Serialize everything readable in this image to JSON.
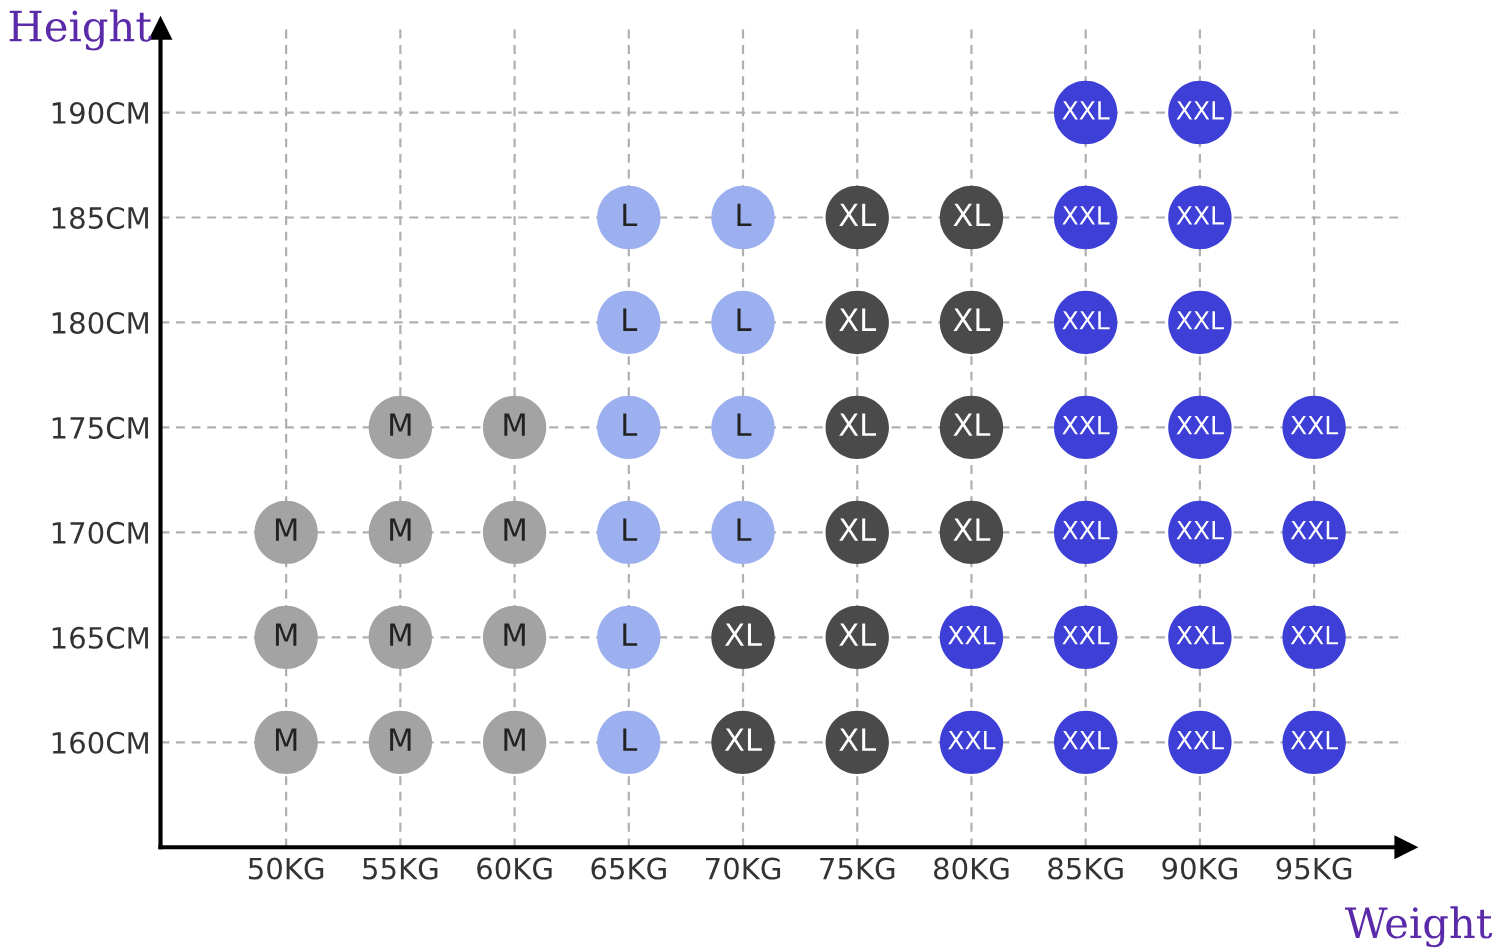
{
  "chart_data": {
    "type": "scatter",
    "xlabel": "Weight",
    "ylabel": "Height",
    "xlim": [
      44.5,
      99
    ],
    "ylim": [
      155,
      194
    ],
    "xticks": [
      {
        "value": 50,
        "label": "50KG"
      },
      {
        "value": 55,
        "label": "55KG"
      },
      {
        "value": 60,
        "label": "60KG"
      },
      {
        "value": 65,
        "label": "65KG"
      },
      {
        "value": 70,
        "label": "70KG"
      },
      {
        "value": 75,
        "label": "75KG"
      },
      {
        "value": 80,
        "label": "80KG"
      },
      {
        "value": 85,
        "label": "85KG"
      },
      {
        "value": 90,
        "label": "90KG"
      },
      {
        "value": 95,
        "label": "95KG"
      }
    ],
    "yticks": [
      {
        "value": 160,
        "label": "160CM"
      },
      {
        "value": 165,
        "label": "165CM"
      },
      {
        "value": 170,
        "label": "170CM"
      },
      {
        "value": 175,
        "label": "175CM"
      },
      {
        "value": 180,
        "label": "180CM"
      },
      {
        "value": 185,
        "label": "185CM"
      },
      {
        "value": 190,
        "label": "190CM"
      }
    ],
    "grid": true,
    "marker": "circle",
    "series": [
      {
        "color": "#a3a3a3",
        "x": [
          50,
          50,
          50,
          55,
          55,
          55,
          55,
          60,
          60,
          60,
          60
        ],
        "values": [
          170,
          165,
          160,
          175,
          170,
          165,
          160,
          175,
          170,
          165,
          160
        ],
        "value_labels": [
          "M",
          "M",
          "M",
          "M",
          "M",
          "M",
          "M",
          "M",
          "M",
          "M",
          "M"
        ]
      },
      {
        "color": "#9cb0f0",
        "x": [
          65,
          65,
          65,
          65,
          65,
          65,
          70,
          70,
          70,
          70
        ],
        "values": [
          185,
          180,
          175,
          170,
          165,
          160,
          185,
          180,
          175,
          170
        ],
        "value_labels": [
          "L",
          "L",
          "L",
          "L",
          "L",
          "L",
          "L",
          "L",
          "L",
          "L"
        ]
      },
      {
        "color": "#4a4a4a",
        "x": [
          70,
          70,
          75,
          75,
          75,
          75,
          75,
          75,
          80,
          80,
          80,
          80
        ],
        "values": [
          165,
          160,
          185,
          180,
          175,
          170,
          165,
          160,
          185,
          180,
          175,
          170
        ],
        "value_labels": [
          "XL",
          "XL",
          "XL",
          "XL",
          "XL",
          "XL",
          "XL",
          "XL",
          "XL",
          "XL",
          "XL",
          "XL"
        ]
      },
      {
        "color": "#3d3fd6",
        "x": [
          80,
          80,
          85,
          85,
          85,
          85,
          85,
          85,
          85,
          90,
          90,
          90,
          90,
          90,
          90,
          90,
          95,
          95,
          95,
          95
        ],
        "values": [
          165,
          160,
          190,
          185,
          180,
          175,
          170,
          165,
          160,
          190,
          185,
          180,
          175,
          170,
          165,
          160,
          175,
          170,
          165,
          160
        ],
        "value_labels": [
          "XXL",
          "XXL",
          "XXL",
          "XXL",
          "XXL",
          "XXL",
          "XXL",
          "XXL",
          "XXL",
          "XXL",
          "XXL",
          "XXL",
          "XXL",
          "XXL",
          "XXL",
          "XXL",
          "XXL",
          "XXL",
          "XXL",
          "XXL"
        ]
      }
    ]
  }
}
